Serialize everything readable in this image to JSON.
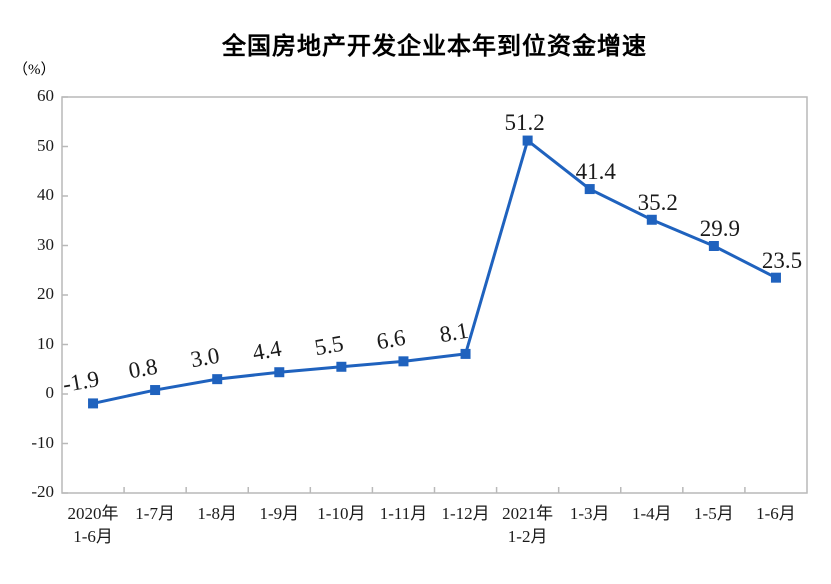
{
  "chart_data": {
    "type": "line",
    "title": "全国房地产开发企业本年到位资金增速",
    "unit_label": "（%）",
    "categories": [
      "2020年\n1-6月",
      "1-7月",
      "1-8月",
      "1-9月",
      "1-10月",
      "1-11月",
      "1-12月",
      "2021年\n1-2月",
      "1-3月",
      "1-4月",
      "1-5月",
      "1-6月"
    ],
    "values": [
      -1.9,
      0.8,
      3.0,
      4.4,
      5.5,
      6.6,
      8.1,
      51.2,
      41.4,
      35.2,
      29.9,
      23.5
    ],
    "point_labels": [
      "-1.9",
      "0.8",
      "3.0",
      "4.4",
      "5.5",
      "6.6",
      "8.1",
      "51.2",
      "41.4",
      "35.2",
      "29.9",
      "23.5"
    ],
    "y_ticks": [
      60,
      50,
      40,
      30,
      20,
      10,
      0,
      -10,
      -20
    ],
    "ylim": [
      -20,
      60
    ],
    "xlabel": "",
    "ylabel": "（%）",
    "grid": false,
    "legend_position": "none",
    "marker": "square",
    "colors": {
      "line": "#1F62BE",
      "marker": "#1F62BE",
      "axis": "#B9B9B9",
      "text": "#1A1A1A",
      "background": "#FFFFFF"
    }
  }
}
